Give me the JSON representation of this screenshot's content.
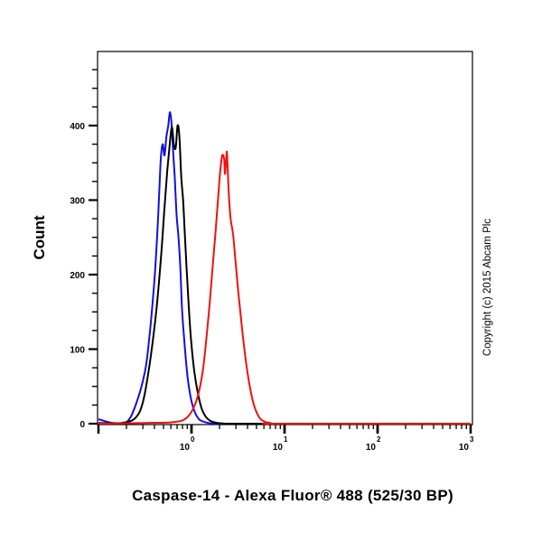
{
  "chart_data": {
    "type": "line",
    "subtype": "flow-cytometry-histogram",
    "title": "",
    "xlabel": "Caspase-14 - Alexa Fluor® 488 (525/30 BP)",
    "ylabel": "Count",
    "xscale": "log",
    "xlim": [
      0.1,
      1000
    ],
    "ylim": [
      0,
      500
    ],
    "x_tick_labels": [
      {
        "base": "10",
        "exp": "0",
        "value": 1
      },
      {
        "base": "10",
        "exp": "1",
        "value": 10
      },
      {
        "base": "10",
        "exp": "2",
        "value": 100
      },
      {
        "base": "10",
        "exp": "3",
        "value": 1000
      }
    ],
    "y_ticks": [
      0,
      100,
      200,
      300,
      400
    ],
    "y_minor_step": 25,
    "grid": false,
    "legend": null,
    "annotation": "Copyright (c) 2015 Abcam Plc",
    "series": [
      {
        "name": "blue",
        "color": "#1010e0",
        "log10_x": [
          -1.0,
          -0.85,
          -0.7,
          -0.6,
          -0.5,
          -0.45,
          -0.4,
          -0.37,
          -0.35,
          -0.33,
          -0.31,
          -0.29,
          -0.27,
          -0.25,
          -0.23,
          -0.21,
          -0.2,
          -0.18,
          -0.16,
          -0.14,
          -0.12,
          -0.1,
          -0.07,
          -0.04,
          0.0,
          0.04,
          0.08,
          0.12,
          0.18,
          0.25,
          0.35,
          0.5,
          3.0
        ],
        "count": [
          6,
          1,
          2,
          25,
          70,
          120,
          190,
          250,
          300,
          355,
          375,
          360,
          385,
          400,
          418,
          395,
          370,
          330,
          280,
          250,
          210,
          150,
          100,
          60,
          30,
          14,
          6,
          3,
          1,
          0,
          0,
          0,
          0
        ]
      },
      {
        "name": "black",
        "color": "#000000",
        "log10_x": [
          -1.0,
          -0.75,
          -0.6,
          -0.52,
          -0.45,
          -0.38,
          -0.33,
          -0.29,
          -0.26,
          -0.23,
          -0.21,
          -0.19,
          -0.17,
          -0.15,
          -0.13,
          -0.11,
          -0.09,
          -0.07,
          -0.04,
          -0.01,
          0.03,
          0.07,
          0.11,
          0.15,
          0.2,
          0.28,
          0.4,
          0.6,
          3.0
        ],
        "count": [
          1,
          1,
          8,
          30,
          80,
          150,
          220,
          290,
          340,
          380,
          398,
          375,
          370,
          400,
          385,
          330,
          300,
          250,
          180,
          120,
          70,
          40,
          20,
          10,
          4,
          1,
          0,
          0,
          0
        ]
      },
      {
        "name": "red",
        "color": "#ee1111",
        "log10_x": [
          -1.0,
          -0.5,
          -0.2,
          -0.05,
          0.05,
          0.12,
          0.18,
          0.22,
          0.26,
          0.29,
          0.31,
          0.33,
          0.35,
          0.36,
          0.37,
          0.38,
          0.39,
          0.4,
          0.42,
          0.45,
          0.5,
          0.55,
          0.6,
          0.66,
          0.72,
          0.78,
          0.85,
          0.95,
          3.0
        ],
        "count": [
          0,
          1,
          2,
          8,
          30,
          70,
          140,
          200,
          260,
          310,
          340,
          360,
          355,
          335,
          350,
          365,
          340,
          310,
          275,
          250,
          180,
          120,
          70,
          30,
          10,
          3,
          1,
          0,
          0
        ]
      }
    ]
  }
}
